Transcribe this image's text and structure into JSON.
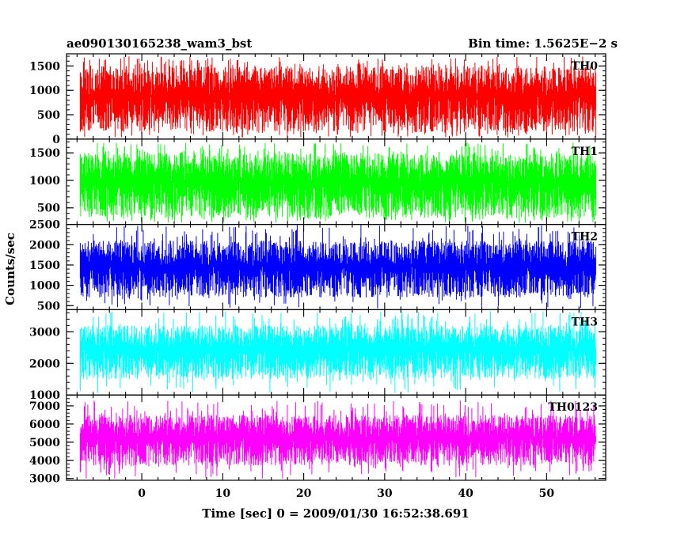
{
  "chart_data": {
    "type": "line",
    "title_left": "ae090130165238_wam3_bst",
    "title_right": "Bin time: 1.5625E−2 s",
    "xlabel": "Time [sec] 0 = 2009/01/30 16:52:38.691",
    "ylabel": "Counts/sec",
    "xlim": [
      -9.3,
      57.3
    ],
    "data_x_range": [
      -7.6,
      56.1
    ],
    "x_ticks": [
      0,
      10,
      20,
      30,
      40,
      50
    ],
    "x_tick_labels": [
      "0",
      "10",
      "20",
      "30",
      "40",
      "50"
    ],
    "grid": false,
    "panels": [
      {
        "name": "TH0",
        "color": "#ff0000",
        "ylim": [
          0,
          1750
        ],
        "yticks": [
          0,
          500,
          1000,
          1500
        ],
        "ytick_labels": [
          "0",
          "500",
          "1000",
          "1500"
        ],
        "typical_range": [
          150,
          1500
        ],
        "spike_min": 30,
        "spike_max": 1700
      },
      {
        "name": "TH1",
        "color": "#00ff00",
        "ylim": [
          200,
          1750
        ],
        "yticks": [
          500,
          1000,
          1500
        ],
        "ytick_labels": [
          "500",
          "1000",
          "1500"
        ],
        "typical_range": [
          320,
          1500
        ],
        "spike_min": 230,
        "spike_max": 1700
      },
      {
        "name": "TH2",
        "color": "#0000ff",
        "ylim": [
          400,
          2500
        ],
        "yticks": [
          500,
          1000,
          1500,
          2000,
          2500
        ],
        "ytick_labels": [
          "500",
          "1000",
          "1500",
          "2000",
          "2500"
        ],
        "typical_range": [
          700,
          2100
        ],
        "spike_min": 420,
        "spike_max": 2500
      },
      {
        "name": "TH3",
        "color": "#00ffff",
        "ylim": [
          1000,
          3700
        ],
        "yticks": [
          1000,
          2000,
          3000
        ],
        "ytick_labels": [
          "1000",
          "2000",
          "3000"
        ],
        "typical_range": [
          1500,
          3200
        ],
        "spike_min": 1050,
        "spike_max": 3650
      },
      {
        "name": "TH0123",
        "color": "#ff00ff",
        "ylim": [
          2900,
          7600
        ],
        "yticks": [
          3000,
          4000,
          5000,
          6000,
          7000
        ],
        "ytick_labels": [
          "3000",
          "4000",
          "5000",
          "6000",
          "7000"
        ],
        "typical_range": [
          3700,
          6500
        ],
        "spike_min": 2950,
        "spike_max": 7300
      }
    ]
  }
}
